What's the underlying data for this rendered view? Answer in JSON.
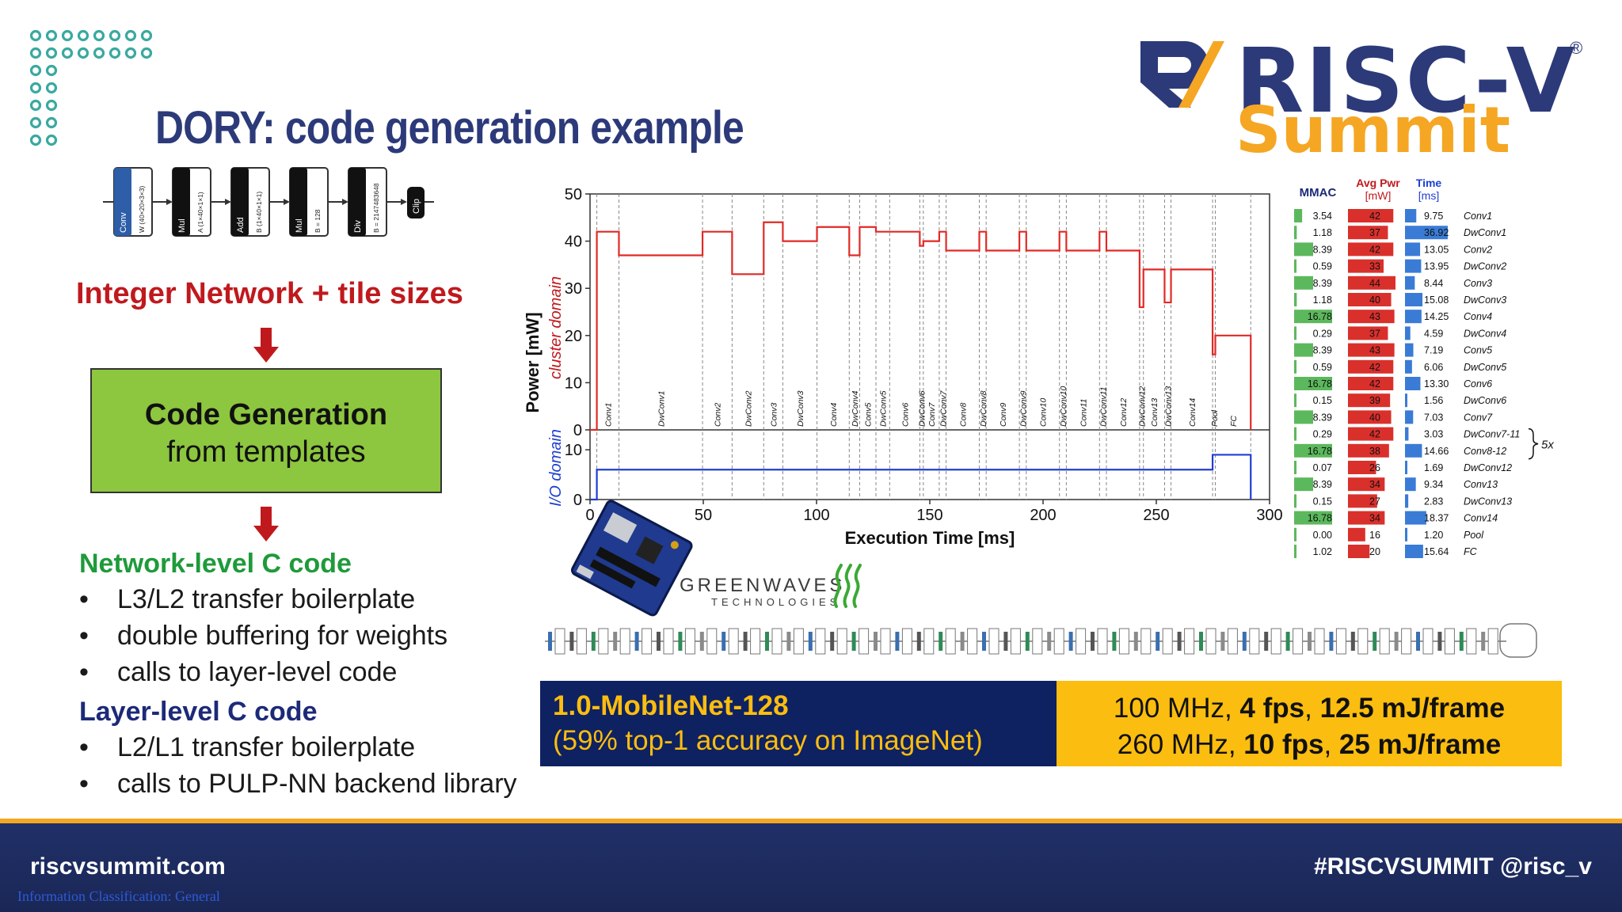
{
  "slide": {
    "title": "DORY: code generation example",
    "logo": {
      "word": "RISC-V",
      "sub": "Summit",
      "reg": "®"
    },
    "pipeline": {
      "blocks": [
        {
          "op": "Conv",
          "param": "W (40×20×3×3)"
        },
        {
          "op": "Mul",
          "param": "A (1×40×1×1)"
        },
        {
          "op": "Add",
          "param": "B (1×40×1×1)"
        },
        {
          "op": "Mul",
          "param": "B = 128"
        },
        {
          "op": "Div",
          "param": "B = 2147483648"
        }
      ],
      "end": "Clip"
    },
    "headline": "Integer Network + tile sizes",
    "box": {
      "line1": "Code Generation",
      "line2": "from templates"
    },
    "network_heading": "Network-level C code",
    "network_bullets": [
      "L3/L2 transfer boilerplate",
      "double buffering for weights",
      "calls to layer-level code"
    ],
    "layer_heading": "Layer-level C code",
    "layer_bullets": [
      "L2/L1 transfer boilerplate",
      "calls to PULP-NN backend library"
    ],
    "bullet_char": "•",
    "greenwaves": {
      "name": "GREENWAVES",
      "sub": "TECHNOLOGIES"
    },
    "banner": {
      "left_line1": "1.0-MobileNet-128",
      "left_line2": "(59% top-1 accuracy on ImageNet)",
      "right_line1_a": "100 MHz, ",
      "right_line1_b": "4 fps",
      "right_line1_c": ", ",
      "right_line1_d": "12.5 mJ/frame",
      "right_line2_a": "260 MHz, ",
      "right_line2_b": "10 fps",
      "right_line2_c": ", ",
      "right_line2_d": "25 mJ/frame"
    },
    "footer": {
      "left": "riscvsummit.com",
      "right": "#RISCVSUMMIT  @risc_v",
      "classification": "Information Classification: General"
    }
  },
  "chart_data": {
    "type": "line",
    "ylabel": "Power [mW]",
    "ylabel_top": "cluster domain",
    "ylabel_bottom": "I/O domain",
    "xlabel": "Execution Time [ms]",
    "xlim": [
      0,
      300
    ],
    "xticks": [
      0,
      50,
      100,
      150,
      200,
      250,
      300
    ],
    "ylim_cluster": [
      0,
      50
    ],
    "yticks_cluster": [
      0,
      10,
      20,
      30,
      40,
      50
    ],
    "ylim_io": [
      0,
      14
    ],
    "yticks_io": [
      0,
      10
    ],
    "layers": [
      {
        "name": "Conv1",
        "start": 3.0,
        "end": 12.75,
        "power": 42,
        "io": 6
      },
      {
        "name": "DwConv1",
        "start": 12.75,
        "end": 49.67,
        "power": 37,
        "io": 6
      },
      {
        "name": "Conv2",
        "start": 49.67,
        "end": 62.72,
        "power": 42,
        "io": 6
      },
      {
        "name": "DwConv2",
        "start": 62.72,
        "end": 76.67,
        "power": 33,
        "io": 6
      },
      {
        "name": "Conv3",
        "start": 76.67,
        "end": 85.11,
        "power": 44,
        "io": 6
      },
      {
        "name": "DwConv3",
        "start": 85.11,
        "end": 100.19,
        "power": 40,
        "io": 6
      },
      {
        "name": "Conv4",
        "start": 100.19,
        "end": 114.44,
        "power": 43,
        "io": 6
      },
      {
        "name": "DwConv4",
        "start": 114.44,
        "end": 119.03,
        "power": 37,
        "io": 6
      },
      {
        "name": "Conv5",
        "start": 119.03,
        "end": 126.22,
        "power": 43,
        "io": 6
      },
      {
        "name": "DwConv5",
        "start": 126.22,
        "end": 132.28,
        "power": 42,
        "io": 6
      },
      {
        "name": "Conv6",
        "start": 132.28,
        "end": 145.58,
        "power": 42,
        "io": 6
      },
      {
        "name": "DwConv6",
        "start": 145.58,
        "end": 147.14,
        "power": 39,
        "io": 6
      },
      {
        "name": "Conv7",
        "start": 147.14,
        "end": 154.17,
        "power": 40,
        "io": 6
      },
      {
        "name": "DwConv7",
        "start": 154.17,
        "end": 157.2,
        "power": 42,
        "io": 6
      },
      {
        "name": "Conv8",
        "start": 157.2,
        "end": 171.86,
        "power": 38,
        "io": 6
      },
      {
        "name": "DwConv8",
        "start": 171.86,
        "end": 174.89,
        "power": 42,
        "io": 6
      },
      {
        "name": "Conv9",
        "start": 174.89,
        "end": 189.55,
        "power": 38,
        "io": 6
      },
      {
        "name": "DwConv9",
        "start": 189.55,
        "end": 192.58,
        "power": 42,
        "io": 6
      },
      {
        "name": "Conv10",
        "start": 192.58,
        "end": 207.24,
        "power": 38,
        "io": 6
      },
      {
        "name": "DwConv10",
        "start": 207.24,
        "end": 210.27,
        "power": 42,
        "io": 6
      },
      {
        "name": "Conv11",
        "start": 210.27,
        "end": 224.93,
        "power": 38,
        "io": 6
      },
      {
        "name": "DwConv11",
        "start": 224.93,
        "end": 227.96,
        "power": 42,
        "io": 6
      },
      {
        "name": "Conv12",
        "start": 227.96,
        "end": 242.62,
        "power": 38,
        "io": 6
      },
      {
        "name": "DwConv12",
        "start": 242.62,
        "end": 244.31,
        "power": 26,
        "io": 6
      },
      {
        "name": "Conv13",
        "start": 244.31,
        "end": 253.65,
        "power": 34,
        "io": 6
      },
      {
        "name": "DwConv13",
        "start": 253.65,
        "end": 256.48,
        "power": 27,
        "io": 6
      },
      {
        "name": "Conv14",
        "start": 256.48,
        "end": 274.85,
        "power": 34,
        "io": 6
      },
      {
        "name": "Pool",
        "start": 274.85,
        "end": 276.05,
        "power": 16,
        "io": 9
      },
      {
        "name": "FC",
        "start": 276.05,
        "end": 291.69,
        "power": 20,
        "io": 9
      }
    ]
  },
  "table": {
    "headers": {
      "mmac": "MMAC",
      "pwr": "Avg Pwr",
      "pwr_unit": "[mW]",
      "time": "Time",
      "time_unit": "[ms]"
    },
    "rows": [
      {
        "mmac": "3.54",
        "pwr": "42",
        "time": "9.75",
        "layer": "Conv1"
      },
      {
        "mmac": "1.18",
        "pwr": "37",
        "time": "36.92",
        "layer": "DwConv1"
      },
      {
        "mmac": "8.39",
        "pwr": "42",
        "time": "13.05",
        "layer": "Conv2"
      },
      {
        "mmac": "0.59",
        "pwr": "33",
        "time": "13.95",
        "layer": "DwConv2"
      },
      {
        "mmac": "8.39",
        "pwr": "44",
        "time": "8.44",
        "layer": "Conv3"
      },
      {
        "mmac": "1.18",
        "pwr": "40",
        "time": "15.08",
        "layer": "DwConv3"
      },
      {
        "mmac": "16.78",
        "pwr": "43",
        "time": "14.25",
        "layer": "Conv4"
      },
      {
        "mmac": "0.29",
        "pwr": "37",
        "time": "4.59",
        "layer": "DwConv4"
      },
      {
        "mmac": "8.39",
        "pwr": "43",
        "time": "7.19",
        "layer": "Conv5"
      },
      {
        "mmac": "0.59",
        "pwr": "42",
        "time": "6.06",
        "layer": "DwConv5"
      },
      {
        "mmac": "16.78",
        "pwr": "42",
        "time": "13.30",
        "layer": "Conv6"
      },
      {
        "mmac": "0.15",
        "pwr": "39",
        "time": "1.56",
        "layer": "DwConv6"
      },
      {
        "mmac": "8.39",
        "pwr": "40",
        "time": "7.03",
        "layer": "Conv7"
      },
      {
        "mmac": "0.29",
        "pwr": "42",
        "time": "3.03",
        "layer": "DwConv7-11"
      },
      {
        "mmac": "16.78",
        "pwr": "38",
        "time": "14.66",
        "layer": "Conv8-12"
      },
      {
        "mmac": "0.07",
        "pwr": "26",
        "time": "1.69",
        "layer": "DwConv12"
      },
      {
        "mmac": "8.39",
        "pwr": "34",
        "time": "9.34",
        "layer": "Conv13"
      },
      {
        "mmac": "0.15",
        "pwr": "27",
        "time": "2.83",
        "layer": "DwConv13"
      },
      {
        "mmac": "16.78",
        "pwr": "34",
        "time": "18.37",
        "layer": "Conv14"
      },
      {
        "mmac": "0.00",
        "pwr": "16",
        "time": "1.20",
        "layer": "Pool"
      },
      {
        "mmac": "1.02",
        "pwr": "20",
        "time": "15.64",
        "layer": "FC"
      }
    ],
    "repeat_note": "5x",
    "colors": {
      "mmac": "#5cb85c",
      "pwr": "#d9302c",
      "time": "#3a7bd5"
    }
  }
}
